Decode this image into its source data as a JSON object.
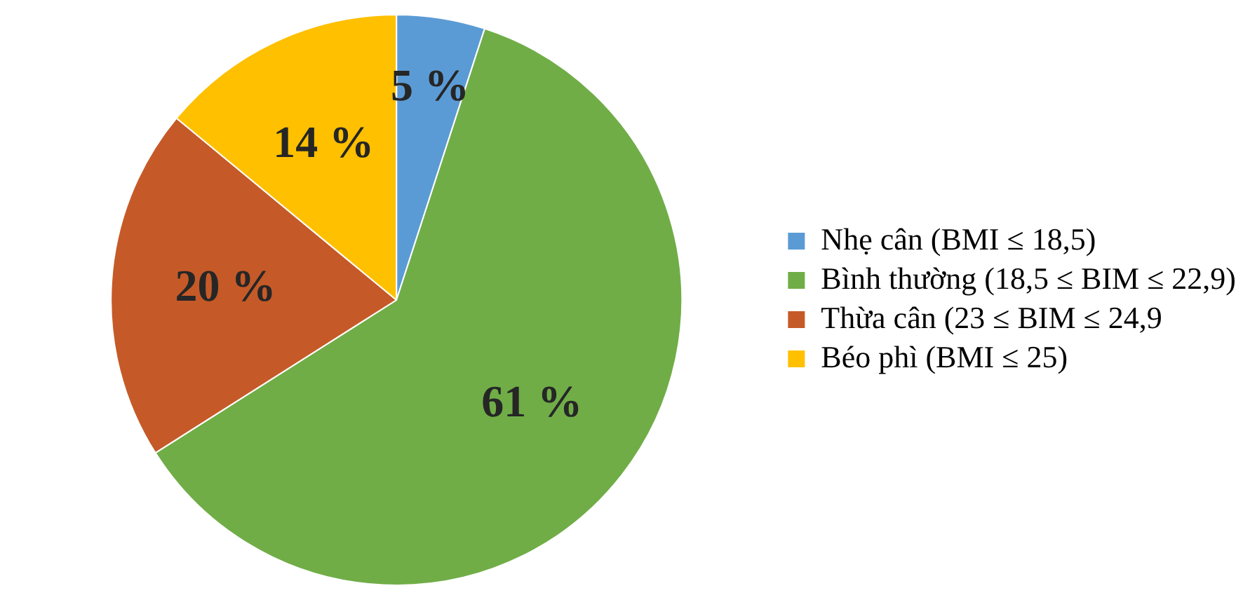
{
  "chart_data": {
    "type": "pie",
    "categories": [
      "Nhẹ cân (BMI ≤ 18,5)",
      "Bình thường (18,5 ≤ BIM ≤ 22,9)",
      "Thừa cân (23 ≤ BIM ≤ 24,9",
      "Béo phì (BMI ≤ 25)"
    ],
    "values": [
      5,
      61,
      20,
      14
    ],
    "value_labels": [
      "5 %",
      "61 %",
      "20 %",
      "14 %"
    ],
    "colors": [
      "#5b9bd5",
      "#70ad47",
      "#c55a28",
      "#ffc000"
    ],
    "legend": "right"
  }
}
